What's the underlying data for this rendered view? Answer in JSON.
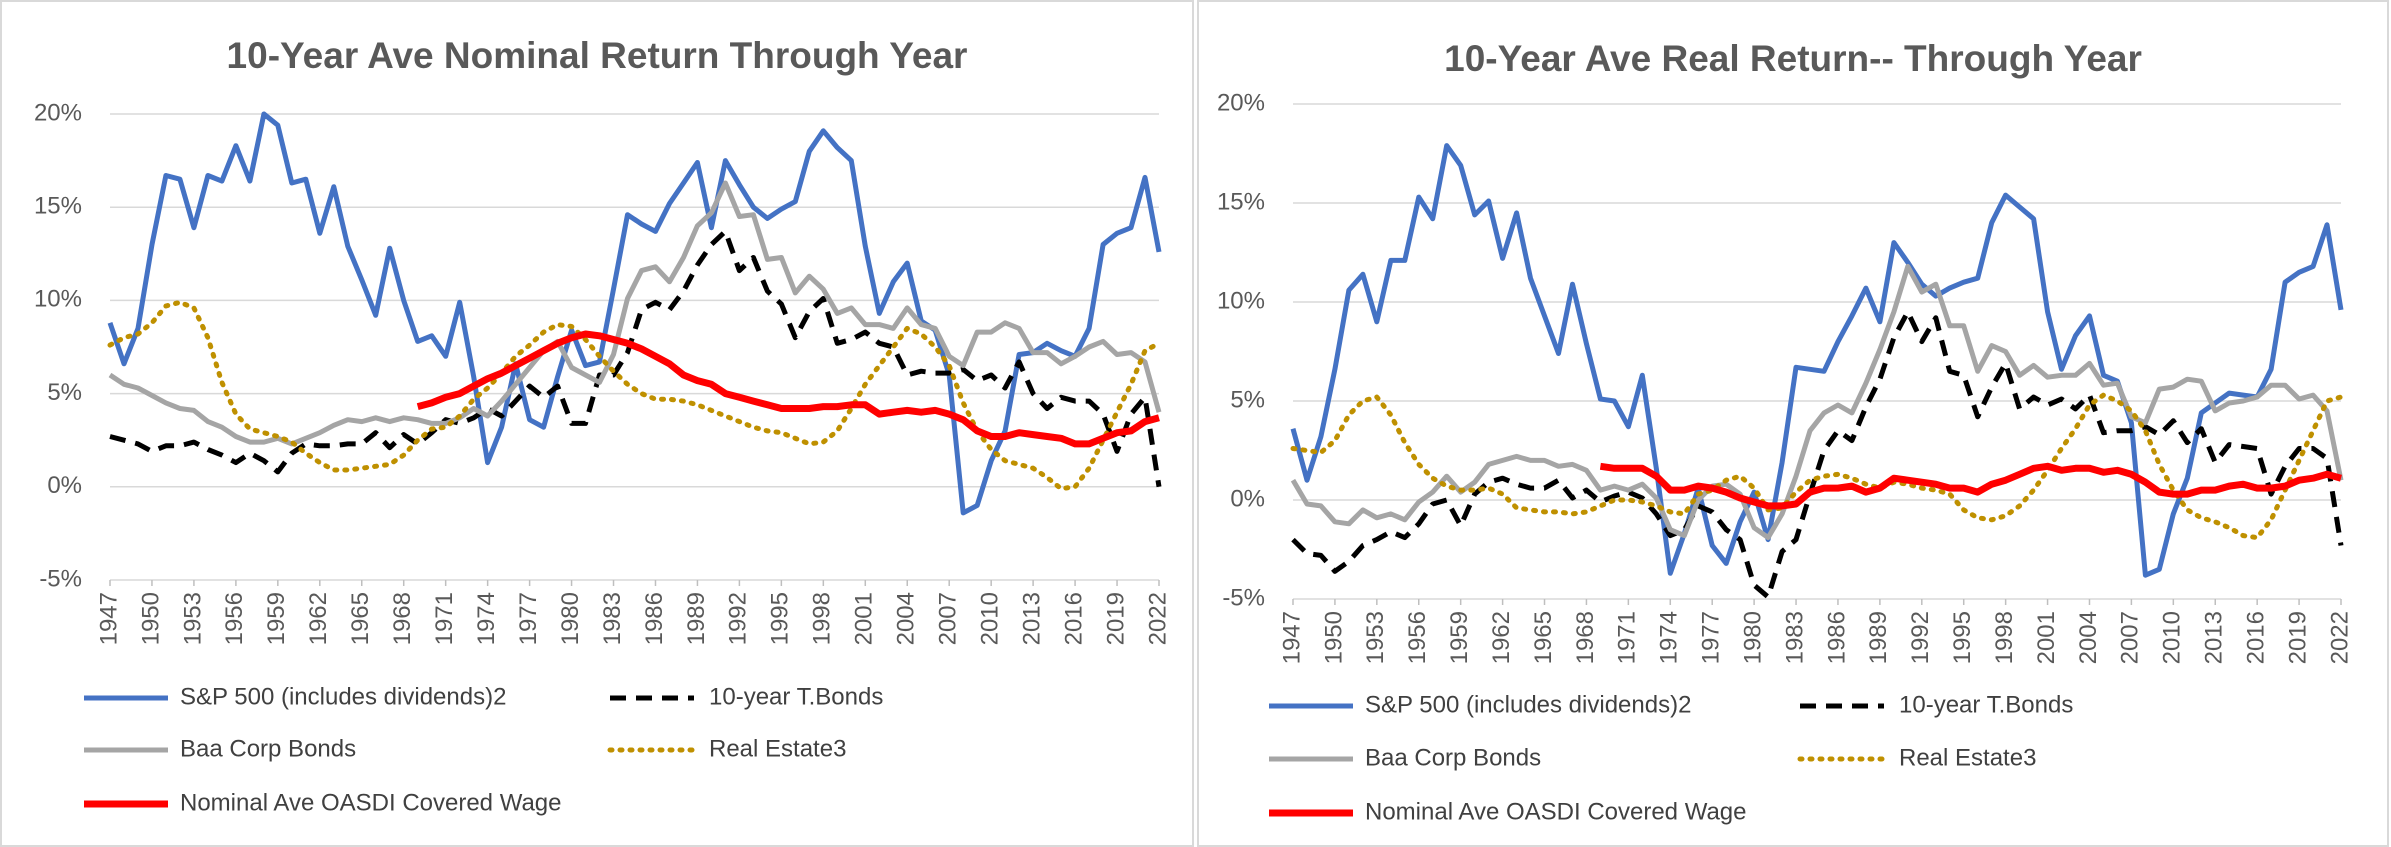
{
  "chart_data": [
    {
      "type": "line",
      "title": "10-Year Ave Nominal Return Through Year",
      "x": [
        1947,
        1948,
        1949,
        1950,
        1951,
        1952,
        1953,
        1954,
        1955,
        1956,
        1957,
        1958,
        1959,
        1960,
        1961,
        1962,
        1963,
        1964,
        1965,
        1966,
        1967,
        1968,
        1969,
        1970,
        1971,
        1972,
        1973,
        1974,
        1975,
        1976,
        1977,
        1978,
        1979,
        1980,
        1981,
        1982,
        1983,
        1984,
        1985,
        1986,
        1987,
        1988,
        1989,
        1990,
        1991,
        1992,
        1993,
        1994,
        1995,
        1996,
        1997,
        1998,
        1999,
        2000,
        2001,
        2002,
        2003,
        2004,
        2005,
        2006,
        2007,
        2008,
        2009,
        2010,
        2011,
        2012,
        2013,
        2014,
        2015,
        2016,
        2017,
        2018,
        2019,
        2020,
        2021,
        2022
      ],
      "xlim": [
        1947,
        2022
      ],
      "xticks": [
        1947,
        1950,
        1953,
        1956,
        1959,
        1962,
        1965,
        1968,
        1971,
        1974,
        1977,
        1980,
        1983,
        1986,
        1989,
        1992,
        1995,
        1998,
        2001,
        2004,
        2007,
        2010,
        2013,
        2016,
        2019,
        2022
      ],
      "ylim": [
        -5,
        20
      ],
      "yticks": [
        {
          "value": -5,
          "label": "-5%"
        },
        {
          "value": 0,
          "label": "0%"
        },
        {
          "value": 5,
          "label": "5%"
        },
        {
          "value": 10,
          "label": "10%"
        },
        {
          "value": 15,
          "label": "15%"
        },
        {
          "value": 20,
          "label": "20%"
        }
      ],
      "grid": true,
      "series": [
        {
          "name": "S&P 500 (includes dividends)2",
          "color": "#4472c4",
          "style": "solid",
          "values": [
            8.8,
            6.6,
            8.5,
            13,
            16.7,
            16.5,
            13.9,
            16.7,
            16.4,
            18.3,
            16.4,
            20.0,
            19.4,
            16.3,
            16.5,
            13.6,
            16.1,
            12.9,
            11.1,
            9.2,
            12.8,
            10,
            7.8,
            8.1,
            7.0,
            9.9,
            5.9,
            1.3,
            3.2,
            6.6,
            3.6,
            3.2,
            5.9,
            8.4,
            6.5,
            6.7,
            10.6,
            14.6,
            14.1,
            13.7,
            15.2,
            16.3,
            17.4,
            13.9,
            17.5,
            16.2,
            15,
            14.4,
            14.9,
            15.3,
            18,
            19.1,
            18.2,
            17.5,
            12.9,
            9.3,
            11,
            12,
            8.9,
            8.4,
            6.0,
            -1.4,
            -1.0,
            1.4,
            3,
            7.1,
            7.2,
            7.7,
            7.3,
            7.0,
            8.5,
            13.0,
            13.6,
            13.9,
            16.6,
            12.6
          ]
        },
        {
          "name": "10-year T.Bonds",
          "color": "#000000",
          "style": "dashed",
          "values": [
            2.7,
            2.5,
            2.3,
            1.9,
            2.2,
            2.2,
            2.4,
            2.0,
            1.7,
            1.3,
            1.8,
            1.4,
            0.8,
            1.8,
            2.3,
            2.2,
            2.2,
            2.3,
            2.3,
            2.9,
            2.1,
            2.8,
            2.3,
            2.9,
            3.6,
            3.4,
            3.7,
            4.2,
            3.8,
            4.6,
            5.4,
            4.8,
            5.4,
            3.4,
            3.4,
            6.0,
            6.0,
            7.2,
            9.5,
            9.9,
            9.5,
            10.5,
            11.9,
            13.0,
            13.7,
            11.6,
            12.3,
            10.5,
            9.8,
            8.0,
            9.4,
            10.1,
            7.7,
            7.9,
            8.3,
            7.7,
            7.5,
            6.0,
            6.2,
            6.1,
            6.1,
            6.3,
            5.7,
            6.0,
            5.3,
            6.7,
            5.0,
            4.2,
            4.8,
            4.6,
            4.6,
            3.9,
            1.9,
            3.9,
            4.8,
            0.0
          ]
        },
        {
          "name": "Baa Corp Bonds",
          "color": "#a5a5a5",
          "style": "solid",
          "values": [
            6.0,
            5.5,
            5.3,
            4.9,
            4.5,
            4.2,
            4.1,
            3.5,
            3.2,
            2.7,
            2.4,
            2.4,
            2.6,
            2.3,
            2.6,
            2.9,
            3.3,
            3.6,
            3.5,
            3.7,
            3.5,
            3.7,
            3.6,
            3.4,
            3.4,
            3.7,
            4.2,
            3.8,
            4.6,
            5.5,
            6.4,
            7.3,
            7.8,
            6.4,
            6.0,
            5.6,
            7.1,
            10.1,
            11.6,
            11.8,
            11.0,
            12.3,
            14.0,
            14.7,
            16.3,
            14.5,
            14.6,
            12.2,
            12.3,
            10.4,
            11.3,
            10.6,
            9.3,
            9.6,
            8.7,
            8.7,
            8.5,
            9.6,
            8.7,
            8.5,
            7.0,
            6.5,
            8.3,
            8.3,
            8.8,
            8.5,
            7.2,
            7.2,
            6.6,
            7.0,
            7.5,
            7.8,
            7.1,
            7.2,
            6.7,
            4.0
          ]
        },
        {
          "name": "Real Estate3",
          "color": "#bf9000",
          "style": "dotted",
          "values": [
            7.6,
            8.0,
            8.2,
            8.8,
            9.7,
            9.9,
            9.6,
            8.0,
            5.6,
            3.9,
            3.1,
            2.9,
            2.7,
            2.4,
            1.8,
            1.3,
            0.9,
            0.9,
            1.0,
            1.1,
            1.2,
            1.7,
            2.5,
            3.1,
            3.2,
            3.8,
            4.7,
            5.3,
            6.1,
            7.0,
            7.6,
            8.3,
            8.7,
            8.6,
            7.9,
            7.0,
            6.2,
            5.5,
            5.0,
            4.7,
            4.7,
            4.6,
            4.4,
            4.1,
            3.8,
            3.5,
            3.2,
            3.0,
            2.9,
            2.6,
            2.3,
            2.4,
            3.0,
            4.2,
            5.5,
            6.5,
            7.5,
            8.5,
            8.2,
            7.5,
            6.5,
            4.5,
            3.0,
            2.0,
            1.4,
            1.2,
            1.0,
            0.5,
            -0.1,
            0.0,
            1.0,
            2.5,
            4.0,
            5.5,
            7.3,
            7.7
          ]
        },
        {
          "name": "Nominal Ave OASDI Covered Wage",
          "color": "#ff0000",
          "style": "thick",
          "values": [
            null,
            null,
            null,
            null,
            null,
            null,
            null,
            null,
            null,
            null,
            null,
            null,
            null,
            null,
            null,
            null,
            null,
            null,
            null,
            null,
            null,
            null,
            4.3,
            4.5,
            4.8,
            5.0,
            5.4,
            5.8,
            6.1,
            6.5,
            6.9,
            7.3,
            7.7,
            8.0,
            8.2,
            8.1,
            7.9,
            7.7,
            7.4,
            7.0,
            6.6,
            6.0,
            5.7,
            5.5,
            5.0,
            4.8,
            4.6,
            4.4,
            4.2,
            4.2,
            4.2,
            4.3,
            4.3,
            4.4,
            4.4,
            3.9,
            4.0,
            4.1,
            4.0,
            4.1,
            3.9,
            3.6,
            3.0,
            2.7,
            2.7,
            2.9,
            2.8,
            2.7,
            2.6,
            2.3,
            2.3,
            2.6,
            2.9,
            3.0,
            3.5,
            3.7
          ]
        }
      ]
    },
    {
      "type": "line",
      "title": "10-Year Ave Real Return-- Through Year",
      "x": [
        1947,
        1948,
        1949,
        1950,
        1951,
        1952,
        1953,
        1954,
        1955,
        1956,
        1957,
        1958,
        1959,
        1960,
        1961,
        1962,
        1963,
        1964,
        1965,
        1966,
        1967,
        1968,
        1969,
        1970,
        1971,
        1972,
        1973,
        1974,
        1975,
        1976,
        1977,
        1978,
        1979,
        1980,
        1981,
        1982,
        1983,
        1984,
        1985,
        1986,
        1987,
        1988,
        1989,
        1990,
        1991,
        1992,
        1993,
        1994,
        1995,
        1996,
        1997,
        1998,
        1999,
        2000,
        2001,
        2002,
        2003,
        2004,
        2005,
        2006,
        2007,
        2008,
        2009,
        2010,
        2011,
        2012,
        2013,
        2014,
        2015,
        2016,
        2017,
        2018,
        2019,
        2020,
        2021,
        2022
      ],
      "xlim": [
        1947,
        2022
      ],
      "xticks": [
        1947,
        1950,
        1953,
        1956,
        1959,
        1962,
        1965,
        1968,
        1971,
        1974,
        1977,
        1980,
        1983,
        1986,
        1989,
        1992,
        1995,
        1998,
        2001,
        2004,
        2007,
        2010,
        2013,
        2016,
        2019,
        2022
      ],
      "ylim": [
        -5,
        20
      ],
      "yticks": [
        {
          "value": -5,
          "label": "-5%"
        },
        {
          "value": 0,
          "label": "0%"
        },
        {
          "value": 5,
          "label": "5%"
        },
        {
          "value": 10,
          "label": "10%"
        },
        {
          "value": 15,
          "label": "15%"
        },
        {
          "value": 20,
          "label": "20%"
        }
      ],
      "grid": true,
      "series": [
        {
          "name": "S&P 500 (includes dividends)2",
          "color": "#4472c4",
          "style": "solid",
          "values": [
            3.6,
            1.0,
            3.2,
            6.6,
            10.6,
            11.4,
            9.0,
            12.1,
            12.1,
            15.3,
            14.2,
            17.9,
            16.9,
            14.4,
            15.1,
            12.2,
            14.5,
            11.2,
            9.3,
            7.4,
            10.9,
            7.9,
            5.1,
            5.0,
            3.7,
            6.3,
            1.6,
            -3.7,
            -1.7,
            0.6,
            -2.3,
            -3.2,
            -1.1,
            0.4,
            -2.0,
            1.9,
            6.7,
            6.6,
            6.5,
            8.0,
            9.3,
            10.7,
            9.0,
            13.0,
            12.0,
            10.9,
            10.3,
            10.7,
            11.0,
            11.2,
            14.0,
            15.4,
            14.8,
            14.2,
            9.5,
            6.6,
            8.3,
            9.3,
            6.3,
            6.0,
            3.9,
            -3.8,
            -3.5,
            -0.7,
            1.1,
            4.4,
            4.9,
            5.4,
            5.3,
            5.2,
            6.6,
            11.0,
            11.5,
            11.8,
            13.9,
            9.6
          ]
        },
        {
          "name": "10-year T.Bonds",
          "color": "#000000",
          "style": "dashed",
          "values": [
            -2.0,
            -2.7,
            -2.8,
            -3.6,
            -3.1,
            -2.3,
            -2.0,
            -1.6,
            -1.9,
            -1.2,
            -0.2,
            0.0,
            -1.3,
            0.3,
            0.9,
            1.1,
            0.8,
            0.6,
            0.6,
            1.0,
            0.1,
            0.5,
            -0.1,
            0.2,
            0.4,
            0.1,
            -0.7,
            -1.8,
            -1.5,
            -0.3,
            -0.6,
            -1.5,
            -2.0,
            -4.3,
            -4.9,
            -2.6,
            -2.0,
            0.3,
            2.5,
            3.5,
            3.0,
            4.7,
            6.1,
            8.2,
            9.5,
            8.0,
            9.2,
            6.5,
            6.3,
            4.2,
            5.7,
            6.9,
            4.6,
            5.2,
            4.8,
            5.1,
            4.6,
            5.3,
            3.4,
            3.5,
            3.5,
            3.7,
            3.3,
            4.0,
            2.9,
            3.6,
            1.9,
            2.8,
            2.7,
            2.6,
            0.3,
            1.7,
            2.6,
            2.6,
            2.1,
            -2.3
          ]
        },
        {
          "name": "Baa Corp Bonds",
          "color": "#a5a5a5",
          "style": "solid",
          "values": [
            1.0,
            -0.2,
            -0.3,
            -1.1,
            -1.2,
            -0.5,
            -0.9,
            -0.7,
            -1.0,
            -0.1,
            0.4,
            1.2,
            0.4,
            0.9,
            1.8,
            2.0,
            2.2,
            2.0,
            2.0,
            1.7,
            1.8,
            1.5,
            0.5,
            0.7,
            0.5,
            0.8,
            0.1,
            -1.5,
            -1.8,
            0.0,
            0.7,
            0.8,
            0.3,
            -1.4,
            -1.9,
            -0.7,
            1.2,
            3.5,
            4.4,
            4.8,
            4.4,
            5.9,
            7.6,
            9.5,
            11.8,
            10.5,
            10.9,
            8.8,
            8.8,
            6.5,
            7.8,
            7.5,
            6.3,
            6.8,
            6.2,
            6.3,
            6.3,
            6.9,
            5.8,
            5.9,
            4.2,
            3.9,
            5.6,
            5.7,
            6.1,
            6.0,
            4.5,
            4.9,
            5.0,
            5.2,
            5.8,
            5.8,
            5.1,
            5.3,
            4.5,
            1.0
          ]
        },
        {
          "name": "Real Estate3",
          "color": "#bf9000",
          "style": "dotted",
          "values": [
            2.6,
            2.5,
            2.4,
            3.0,
            4.3,
            5.0,
            5.2,
            4.3,
            2.9,
            1.8,
            1.1,
            0.7,
            0.5,
            0.5,
            0.6,
            0.3,
            -0.4,
            -0.5,
            -0.6,
            -0.6,
            -0.7,
            -0.6,
            -0.3,
            0.0,
            0.0,
            -0.1,
            -0.3,
            -0.6,
            -0.7,
            0.3,
            0.5,
            1.0,
            1.2,
            0.6,
            -0.5,
            -0.4,
            0.4,
            1.0,
            1.2,
            1.3,
            1.1,
            0.8,
            0.6,
            0.9,
            0.8,
            0.6,
            0.5,
            0.3,
            -0.5,
            -0.9,
            -1.0,
            -0.8,
            -0.3,
            0.5,
            1.5,
            2.6,
            3.6,
            4.8,
            5.3,
            5.0,
            4.5,
            3.5,
            1.8,
            0.5,
            -0.5,
            -0.9,
            -1.1,
            -1.4,
            -1.8,
            -1.9,
            -1.0,
            0.5,
            2.0,
            3.5,
            5.0,
            5.2
          ]
        },
        {
          "name": "Nominal Ave OASDI Covered Wage",
          "color": "#ff0000",
          "style": "thick",
          "values": [
            null,
            null,
            null,
            null,
            null,
            null,
            null,
            null,
            null,
            null,
            null,
            null,
            null,
            null,
            null,
            null,
            null,
            null,
            null,
            null,
            null,
            null,
            1.7,
            1.6,
            1.6,
            1.6,
            1.2,
            0.5,
            0.5,
            0.7,
            0.6,
            0.4,
            0.1,
            -0.1,
            -0.3,
            -0.3,
            -0.2,
            0.4,
            0.6,
            0.6,
            0.7,
            0.4,
            0.6,
            1.1,
            1.0,
            0.9,
            0.8,
            0.6,
            0.6,
            0.4,
            0.8,
            1.0,
            1.3,
            1.6,
            1.7,
            1.5,
            1.6,
            1.6,
            1.4,
            1.5,
            1.3,
            0.9,
            0.4,
            0.3,
            0.3,
            0.5,
            0.5,
            0.7,
            0.8,
            0.6,
            0.6,
            0.7,
            1.0,
            1.1,
            1.3,
            1.1
          ]
        }
      ]
    }
  ]
}
